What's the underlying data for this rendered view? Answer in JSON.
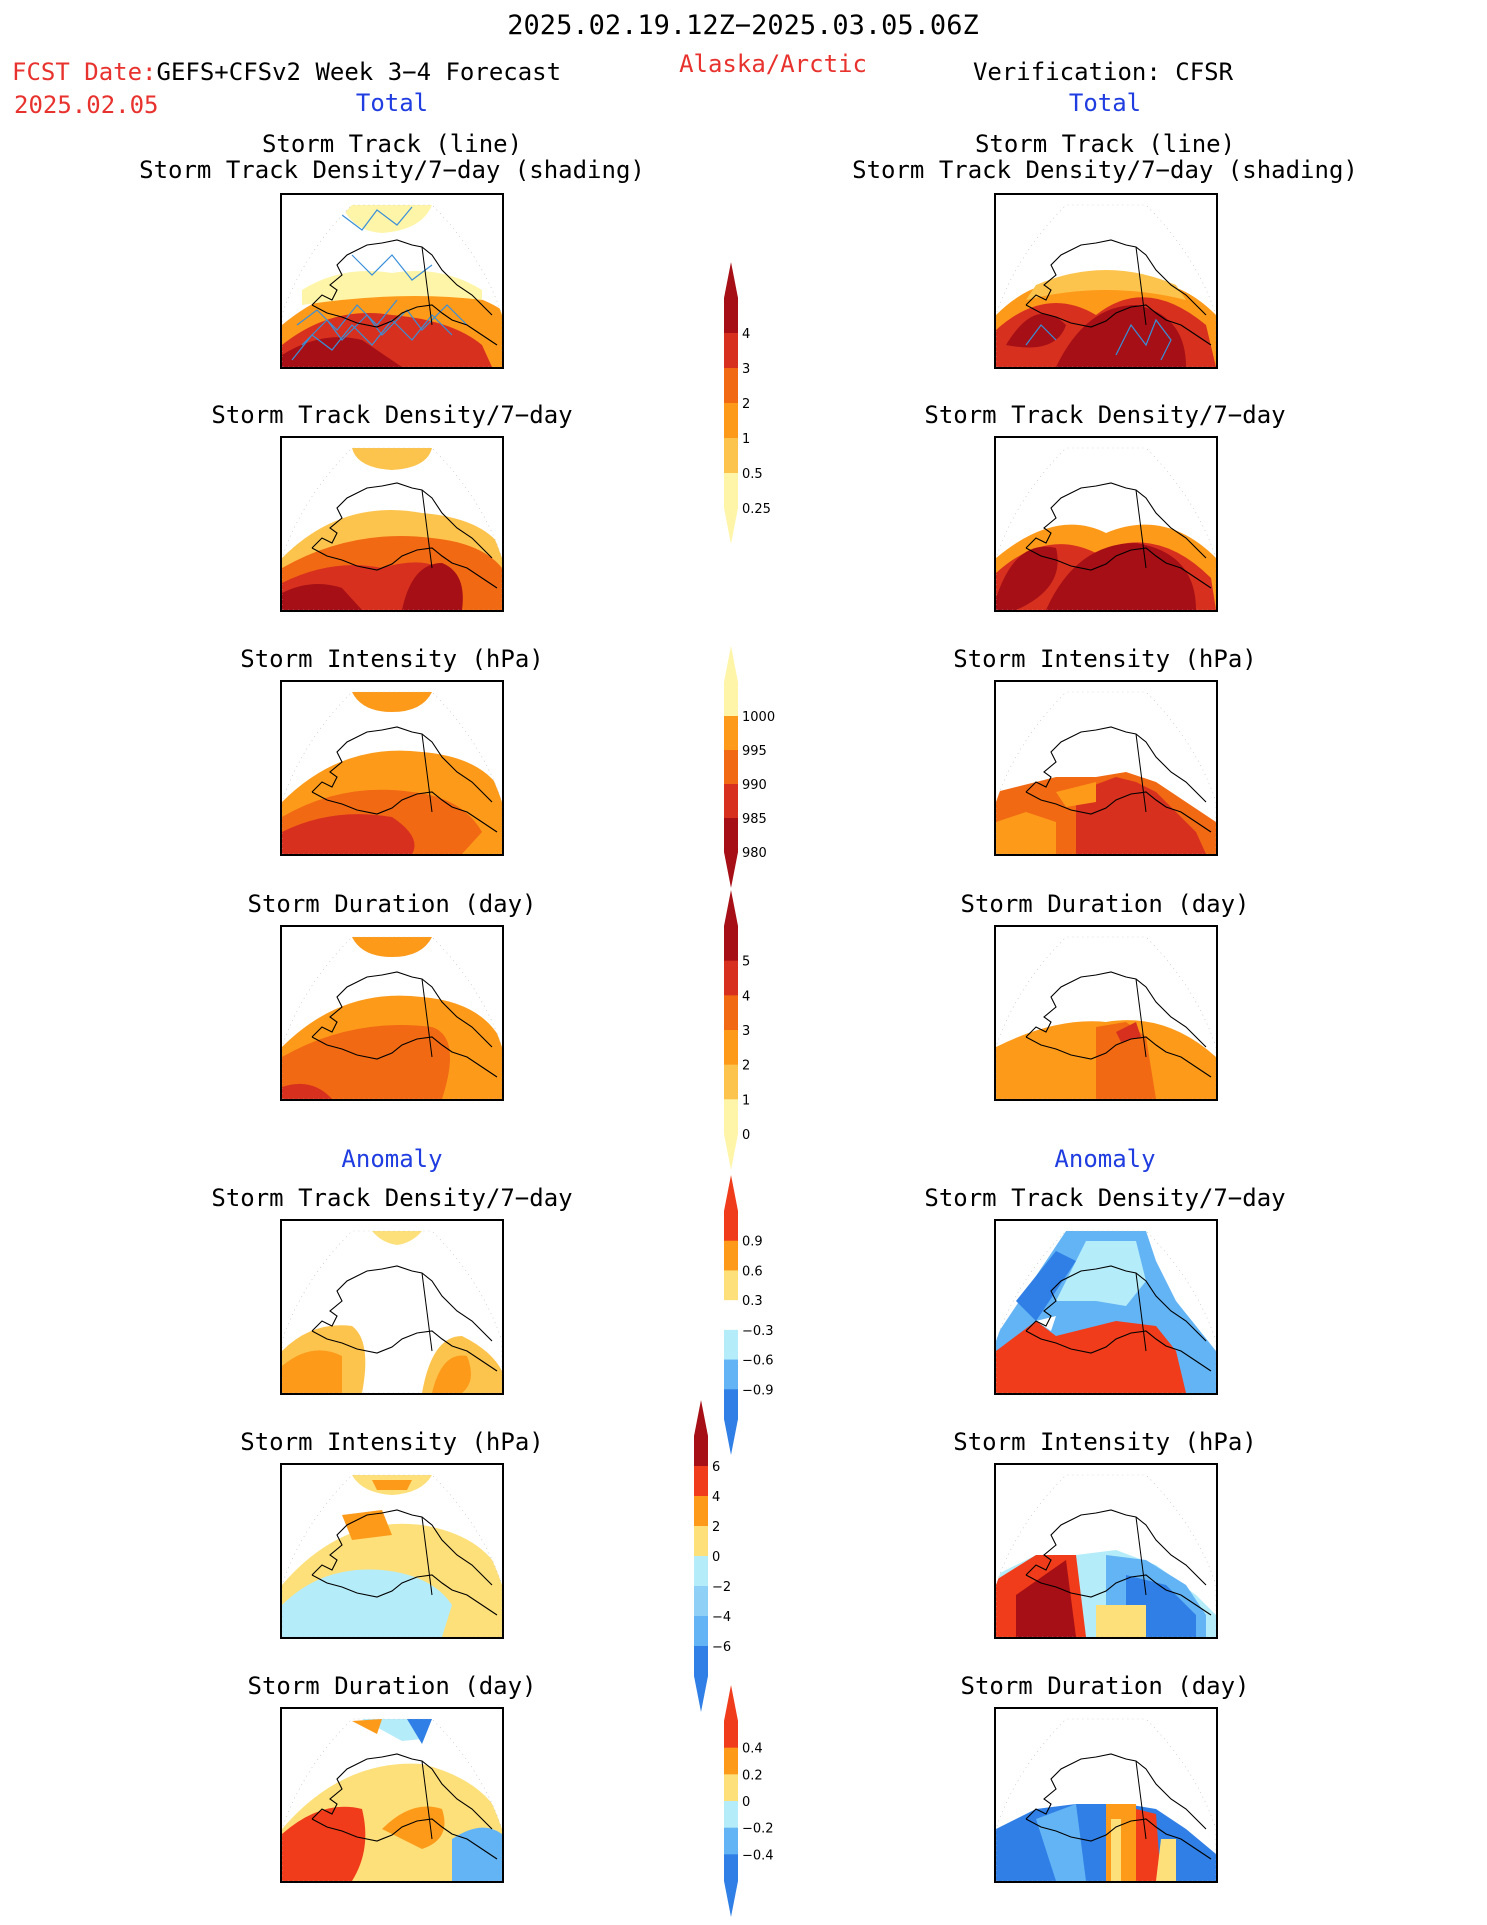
{
  "header": {
    "period": "2025.02.19.12Z−2025.03.05.06Z",
    "fcst_label": "FCST Date:",
    "fcst_model": "GEFS+CFSv2 Week 3−4 Forecast",
    "fcst_date": "2025.02.05",
    "region": "Alaska/Arctic",
    "verification": "Verification: CFSR"
  },
  "sections": {
    "total": "Total",
    "anomaly": "Anomaly"
  },
  "titles": {
    "track_line": "Storm Track (line)",
    "track_shading": "Storm Track Density/7−day (shading)",
    "track_density": "Storm Track Density/7−day",
    "intensity": "Storm Intensity (hPa)",
    "duration": "Storm Duration (day)"
  },
  "colorbars": [
    {
      "id": "density_total",
      "labels": [
        "4",
        "3",
        "2",
        "1",
        "0.5",
        "0.25"
      ],
      "colors": [
        "#a50f15",
        "#d7301f",
        "#f16913",
        "#fd9a1a",
        "#fdc44d",
        "#fff5a8"
      ],
      "extend": "both"
    },
    {
      "id": "intensity_total",
      "labels": [
        "1000",
        "995",
        "990",
        "985",
        "980"
      ],
      "colors": [
        "#fff5a8",
        "#fd9a1a",
        "#f16913",
        "#d7301f",
        "#a50f15"
      ],
      "extend": "both"
    },
    {
      "id": "duration_total",
      "labels": [
        "5",
        "4",
        "3",
        "2",
        "1",
        "0"
      ],
      "colors": [
        "#a50f15",
        "#d7301f",
        "#f16913",
        "#fd9a1a",
        "#fdc44d",
        "#fff5a8"
      ],
      "extend": "both"
    },
    {
      "id": "density_anom",
      "labels": [
        "0.9",
        "0.6",
        "0.3",
        "−0.3",
        "−0.6",
        "−0.9"
      ],
      "colors": [
        "#f03c1a",
        "#fd9a1a",
        "#fde07a",
        "#ffffff",
        "#b5ecfa",
        "#63b4f5",
        "#2f7fe6"
      ],
      "extend": "both"
    },
    {
      "id": "intensity_anom",
      "labels": [
        "6",
        "4",
        "2",
        "0",
        "−2",
        "−4",
        "−6"
      ],
      "colors": [
        "#a50f15",
        "#f03c1a",
        "#fd9a1a",
        "#fde07a",
        "#b5ecfa",
        "#8fd0f7",
        "#63b4f5",
        "#2f7fe6"
      ],
      "extend": "both"
    },
    {
      "id": "duration_anom",
      "labels": [
        "0.4",
        "0.2",
        "0",
        "−0.2",
        "−0.4"
      ],
      "colors": [
        "#f03c1a",
        "#fd9a1a",
        "#fde07a",
        "#b5ecfa",
        "#63b4f5",
        "#2f7fe6"
      ],
      "extend": "both"
    }
  ],
  "palette": {
    "dark_red": "#a50f15",
    "red": "#d7301f",
    "orange_red": "#f16913",
    "orange": "#fd9a1a",
    "light_orange": "#fdc44d",
    "pale_yellow": "#fff5a8",
    "light_blue": "#b5ecfa",
    "mid_blue": "#63b4f5",
    "blue": "#2f7fe6",
    "track_line": "#3a8fd8"
  }
}
